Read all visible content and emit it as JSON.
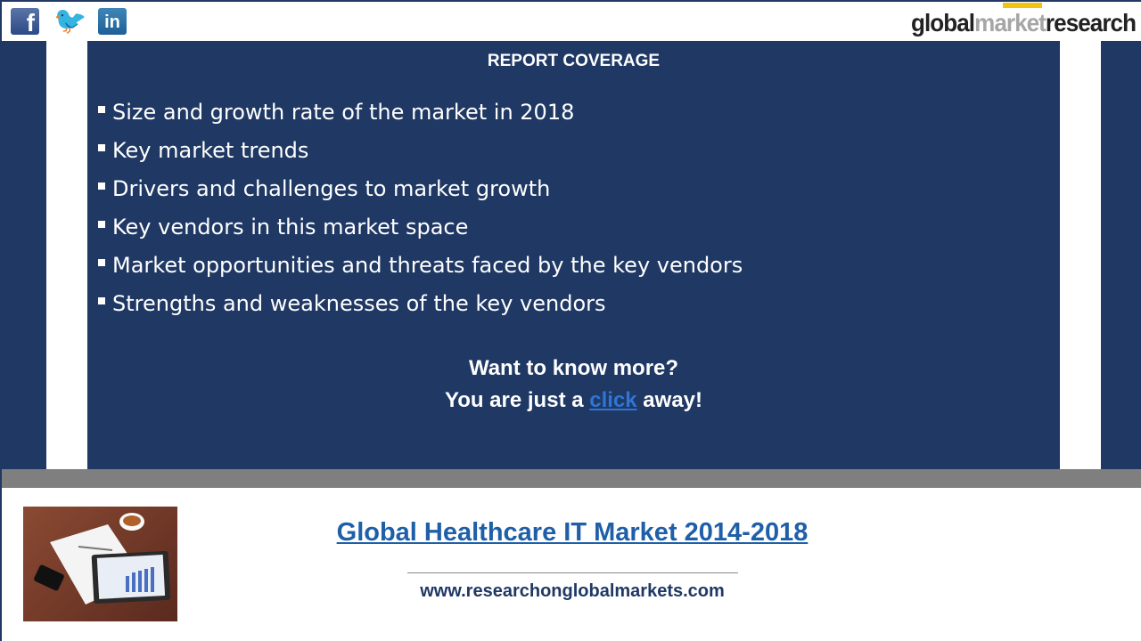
{
  "header": {
    "social": [
      "facebook-icon",
      "twitter-icon",
      "linkedin-icon"
    ],
    "logo": {
      "part1": "global",
      "part2": "market",
      "part3": "research"
    }
  },
  "coverage": {
    "heading": "REPORT COVERAGE",
    "items": [
      "Size and growth rate of the market in 2018",
      "Key market trends",
      "Drivers and challenges to market growth",
      "Key vendors in this market space",
      "Market opportunities and threats faced by the key vendors",
      "Strengths and weaknesses of the key vendors"
    ],
    "cta_line1": "Want to know more?",
    "cta_pre": "You are just a ",
    "cta_link": "click",
    "cta_post": " away!"
  },
  "footer": {
    "title": "Global Healthcare IT Market 2014-2018",
    "url": "www.researchonglobalmarkets.com"
  },
  "colors": {
    "navy": "#1f3864",
    "gray_band": "#7f7f7f",
    "link": "#1f5fa8"
  }
}
